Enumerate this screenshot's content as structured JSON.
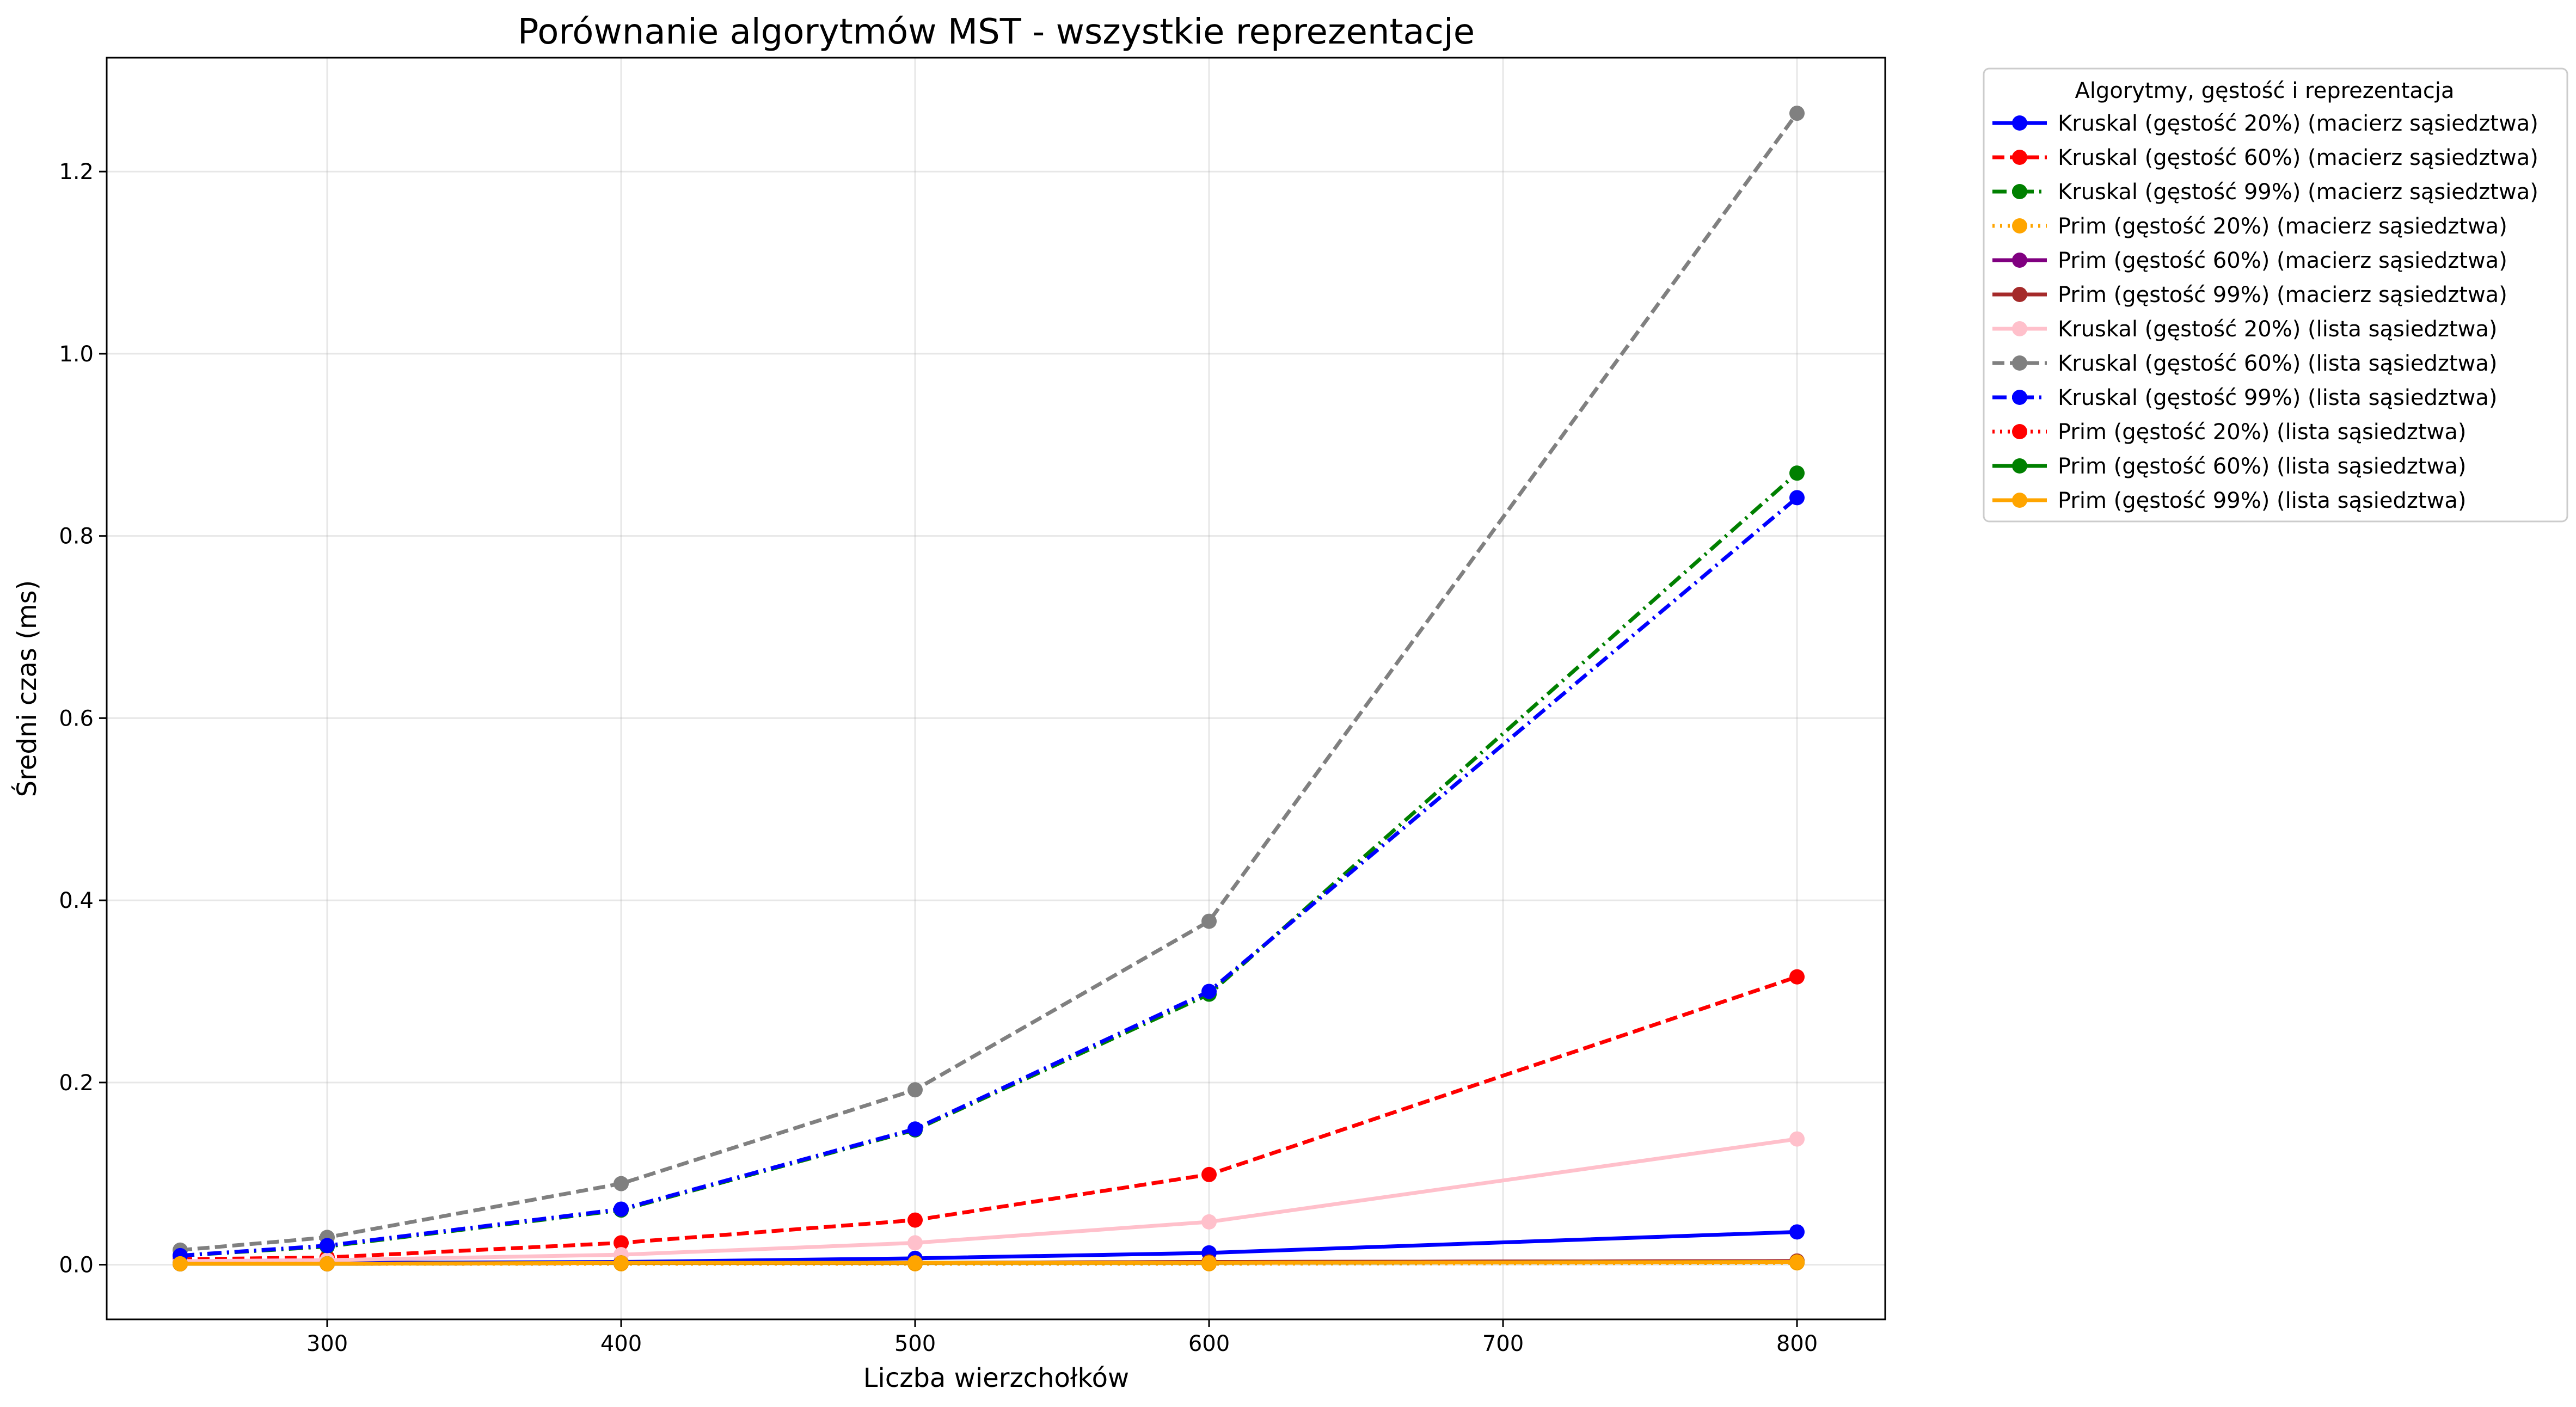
{
  "chart_data": {
    "type": "line",
    "title": "Porównanie algorytmów MST - wszystkie reprezentacje",
    "xlabel": "Liczba wierzchołków",
    "ylabel": "Średni czas (ms)",
    "xlim": [
      225,
      830
    ],
    "ylim": [
      -0.06,
      1.325
    ],
    "xticks": [
      300,
      400,
      500,
      600,
      700,
      800
    ],
    "yticks": [
      0.0,
      0.2,
      0.4,
      0.6,
      0.8,
      1.0,
      1.2
    ],
    "xtick_labels": [
      "300",
      "400",
      "500",
      "600",
      "700",
      "800"
    ],
    "ytick_labels": [
      "0.0",
      "0.2",
      "0.4",
      "0.6",
      "0.8",
      "1.0",
      "1.2"
    ],
    "grid": true,
    "legend_title": "Algorytmy, gęstość i reprezentacja",
    "legend_position": "outside upper right",
    "x": [
      250,
      300,
      400,
      500,
      600,
      800
    ],
    "series": [
      {
        "name": "Kruskal (gęstość 20%) (macierz sąsiedztwa)",
        "color": "#0000ff",
        "dash": "solid",
        "values": [
          0.002,
          0.002,
          0.003,
          0.007,
          0.013,
          0.036
        ]
      },
      {
        "name": "Kruskal (gęstość 60%) (macierz sąsiedztwa)",
        "color": "#ff0000",
        "dash": "dashed",
        "values": [
          0.006,
          0.008,
          0.024,
          0.049,
          0.099,
          0.316
        ]
      },
      {
        "name": "Kruskal (gęstość 99%) (macierz sąsiedztwa)",
        "color": "#008000",
        "dash": "dashdot",
        "values": [
          0.01,
          0.02,
          0.06,
          0.148,
          0.297,
          0.869
        ]
      },
      {
        "name": "Prim (gęstość 20%) (macierz sąsiedztwa)",
        "color": "#ffa500",
        "dash": "dotted",
        "values": [
          0.001,
          0.001,
          0.001,
          0.001,
          0.001,
          0.002
        ]
      },
      {
        "name": "Prim (gęstość 60%) (macierz sąsiedztwa)",
        "color": "#800080",
        "dash": "solid",
        "values": [
          0.001,
          0.001,
          0.002,
          0.002,
          0.003,
          0.004
        ]
      },
      {
        "name": "Prim (gęstość 99%) (macierz sąsiedztwa)",
        "color": "#a52a2a",
        "dash": "solid",
        "values": [
          0.001,
          0.001,
          0.002,
          0.002,
          0.003,
          0.004
        ]
      },
      {
        "name": "Kruskal (gęstość 20%) (lista sąsiedztwa)",
        "color": "#ffc0cb",
        "dash": "solid",
        "values": [
          0.004,
          0.005,
          0.011,
          0.024,
          0.047,
          0.138
        ]
      },
      {
        "name": "Kruskal (gęstość 60%) (lista sąsiedztwa)",
        "color": "#808080",
        "dash": "dashed",
        "values": [
          0.016,
          0.03,
          0.089,
          0.192,
          0.377,
          1.264
        ]
      },
      {
        "name": "Kruskal (gęstość 99%) (lista sąsiedztwa)",
        "color": "#0000ff",
        "dash": "dashdot",
        "values": [
          0.01,
          0.021,
          0.061,
          0.149,
          0.3,
          0.842
        ]
      },
      {
        "name": "Prim (gęstość 20%) (lista sąsiedztwa)",
        "color": "#ff0000",
        "dash": "dotted",
        "values": [
          0.001,
          0.001,
          0.002,
          0.002,
          0.002,
          0.003
        ]
      },
      {
        "name": "Prim (gęstość 60%) (lista sąsiedztwa)",
        "color": "#008000",
        "dash": "solid",
        "values": [
          0.001,
          0.001,
          0.002,
          0.002,
          0.002,
          0.003
        ]
      },
      {
        "name": "Prim (gęstość 99%) (lista sąsiedztwa)",
        "color": "#ffa500",
        "dash": "solid",
        "values": [
          0.001,
          0.001,
          0.002,
          0.002,
          0.002,
          0.003
        ]
      }
    ]
  }
}
